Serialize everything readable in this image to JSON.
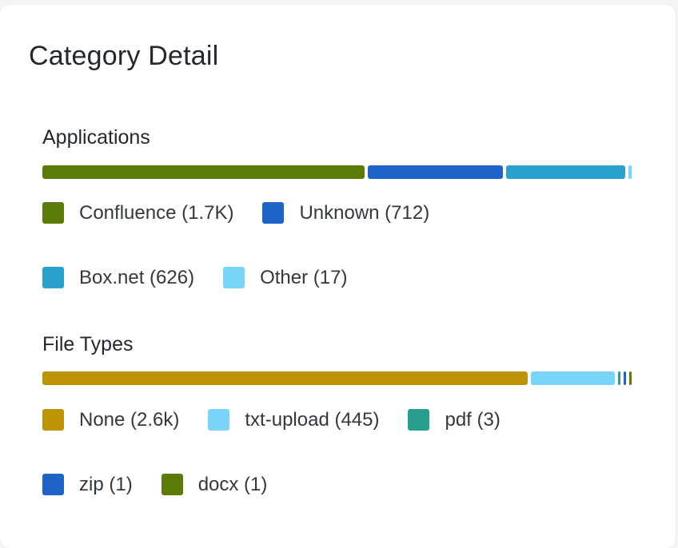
{
  "card": {
    "title": "Category Detail"
  },
  "chart_data": [
    {
      "type": "bar",
      "orientation": "horizontal-stacked",
      "title": "Applications",
      "categories": [
        "Confluence",
        "Unknown",
        "Box.net",
        "Other"
      ],
      "values": [
        1700,
        712,
        626,
        17
      ],
      "labels": [
        "Confluence (1.7K)",
        "Unknown (712)",
        "Box.net (626)",
        "Other (17)"
      ],
      "colors": [
        "#5b7b06",
        "#1e64c8",
        "#2aa0cc",
        "#78d4f8"
      ],
      "legend": "bottom"
    },
    {
      "type": "bar",
      "orientation": "horizontal-stacked",
      "title": "File Types",
      "categories": [
        "None",
        "txt-upload",
        "pdf",
        "zip",
        "docx"
      ],
      "values": [
        2600,
        445,
        3,
        1,
        1
      ],
      "labels": [
        "None (2.6k)",
        "txt-upload (445)",
        "pdf (3)",
        "zip (1)",
        "docx (1)"
      ],
      "colors": [
        "#bc9404",
        "#78d4f8",
        "#2a9e8c",
        "#1e64c8",
        "#5b7b06"
      ],
      "legend": "bottom"
    }
  ]
}
